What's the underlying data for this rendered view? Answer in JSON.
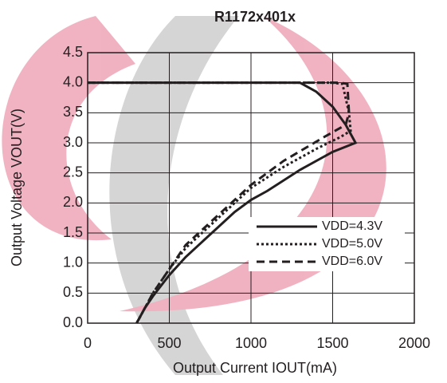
{
  "chart_data": {
    "type": "line",
    "title": "R1172x401x",
    "xlabel": "Output Current IOUT(mA)",
    "ylabel": "Output Voltage VOUT(V)",
    "xlim": [
      0,
      2000
    ],
    "xticks": [
      0,
      500,
      1000,
      1500,
      2000
    ],
    "ylim": [
      0,
      4.5
    ],
    "yticks": [
      {
        "value": 0,
        "label": "0.0"
      },
      0.5,
      {
        "value": 1,
        "label": "1.0"
      },
      1.5,
      {
        "value": 2,
        "label": "2.0"
      },
      2.5,
      {
        "value": 3,
        "label": "3.0"
      },
      3.5,
      {
        "value": 4,
        "label": "4.0"
      },
      4.5
    ],
    "grid": true,
    "legend": "lower right",
    "series": [
      {
        "name": "VDD=4.3V",
        "color": "#231f20",
        "linestyle": "solid",
        "x": [
          0,
          1300,
          1400,
          1500,
          1580,
          1640,
          1500,
          1300,
          1100,
          1000,
          900,
          800,
          700,
          600,
          500,
          400,
          350,
          300
        ],
        "values": [
          4.0,
          4.0,
          3.85,
          3.6,
          3.3,
          3.0,
          2.85,
          2.55,
          2.2,
          2.05,
          1.85,
          1.6,
          1.35,
          1.1,
          0.8,
          0.45,
          0.25,
          0.0
        ]
      },
      {
        "name": "VDD=5.0V",
        "color": "#231f20",
        "linestyle": "dotted",
        "x": [
          0,
          1500,
          1560,
          1600,
          1610,
          1550,
          1400,
          1200,
          1000,
          800,
          600,
          500,
          400,
          300
        ],
        "values": [
          4.0,
          4.0,
          3.98,
          3.5,
          3.2,
          3.1,
          2.9,
          2.6,
          2.25,
          1.75,
          1.25,
          0.9,
          0.5,
          0.0
        ]
      },
      {
        "name": "VDD=6.0V",
        "color": "#231f20",
        "linestyle": "dashed",
        "x": [
          0,
          1550,
          1590,
          1600,
          1580,
          1450,
          1200,
          1000,
          800,
          600,
          500,
          400,
          300
        ],
        "values": [
          4.0,
          4.0,
          3.98,
          3.5,
          3.3,
          3.1,
          2.7,
          2.3,
          1.8,
          1.3,
          0.9,
          0.5,
          0.0
        ]
      }
    ]
  }
}
